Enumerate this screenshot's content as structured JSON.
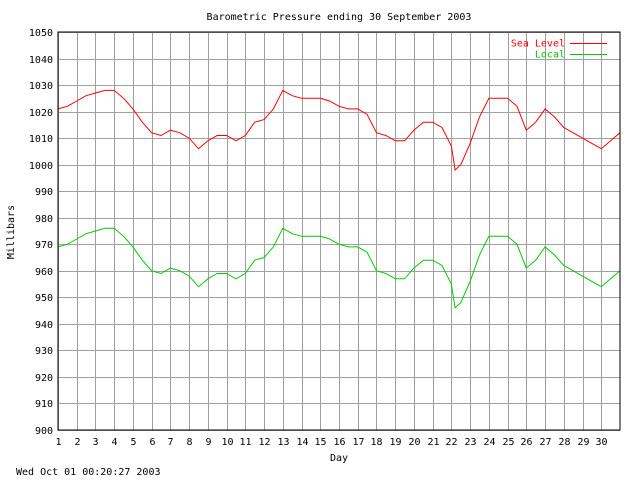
{
  "chart_data": {
    "type": "line",
    "title": "Barometric Pressure ending 30 September 2003",
    "xlabel": "Day",
    "ylabel": "Millibars",
    "footer": "Wed Oct 01 00:20:27 2003",
    "xlim": [
      1,
      31
    ],
    "ylim": [
      900,
      1050
    ],
    "x_ticks": [
      1,
      2,
      3,
      4,
      5,
      6,
      7,
      8,
      9,
      10,
      11,
      12,
      13,
      14,
      15,
      16,
      17,
      18,
      19,
      20,
      21,
      22,
      23,
      24,
      25,
      26,
      27,
      28,
      29,
      30
    ],
    "y_ticks": [
      900,
      910,
      920,
      930,
      940,
      950,
      960,
      970,
      980,
      990,
      1000,
      1010,
      1020,
      1030,
      1040,
      1050
    ],
    "grid": true,
    "legend_position": "top-right",
    "series": [
      {
        "name": "Sea Level",
        "color": "#ff0000",
        "x": [
          1.0,
          1.5,
          2.0,
          2.5,
          3.0,
          3.5,
          4.0,
          4.5,
          5.0,
          5.5,
          6.0,
          6.5,
          7.0,
          7.5,
          8.0,
          8.5,
          9.0,
          9.5,
          10.0,
          10.5,
          11.0,
          11.5,
          12.0,
          12.5,
          13.0,
          13.5,
          14.0,
          14.5,
          15.0,
          15.5,
          16.0,
          16.5,
          17.0,
          17.5,
          18.0,
          18.5,
          19.0,
          19.5,
          20.0,
          20.5,
          21.0,
          21.5,
          22.0,
          22.2,
          22.5,
          23.0,
          23.5,
          24.0,
          24.5,
          25.0,
          25.5,
          26.0,
          26.5,
          27.0,
          27.5,
          28.0,
          28.5,
          29.0,
          29.5,
          30.0,
          30.5,
          31.0
        ],
        "values": [
          1021,
          1022,
          1024,
          1026,
          1027,
          1028,
          1028,
          1025,
          1021,
          1016,
          1012,
          1011,
          1013,
          1012,
          1010,
          1006,
          1009,
          1011,
          1011,
          1009,
          1011,
          1016,
          1017,
          1021,
          1028,
          1026,
          1025,
          1025,
          1025,
          1024,
          1022,
          1021,
          1021,
          1019,
          1012,
          1011,
          1009,
          1009,
          1013,
          1016,
          1016,
          1014,
          1007,
          998,
          1000,
          1008,
          1018,
          1025,
          1025,
          1025,
          1022,
          1013,
          1016,
          1021,
          1018,
          1014,
          1012,
          1010,
          1008,
          1006,
          1009,
          1012
        ]
      },
      {
        "name": "Local",
        "color": "#00cc00",
        "x": [
          1.0,
          1.5,
          2.0,
          2.5,
          3.0,
          3.5,
          4.0,
          4.5,
          5.0,
          5.5,
          6.0,
          6.5,
          7.0,
          7.5,
          8.0,
          8.5,
          9.0,
          9.5,
          10.0,
          10.5,
          11.0,
          11.5,
          12.0,
          12.5,
          13.0,
          13.5,
          14.0,
          14.5,
          15.0,
          15.5,
          16.0,
          16.5,
          17.0,
          17.5,
          18.0,
          18.5,
          19.0,
          19.5,
          20.0,
          20.5,
          21.0,
          21.5,
          22.0,
          22.2,
          22.5,
          23.0,
          23.5,
          24.0,
          24.5,
          25.0,
          25.5,
          26.0,
          26.5,
          27.0,
          27.5,
          28.0,
          28.5,
          29.0,
          29.5,
          30.0,
          30.5,
          31.0
        ],
        "values": [
          969,
          970,
          972,
          974,
          975,
          976,
          976,
          973,
          969,
          964,
          960,
          959,
          961,
          960,
          958,
          954,
          957,
          959,
          959,
          957,
          959,
          964,
          965,
          969,
          976,
          974,
          973,
          973,
          973,
          972,
          970,
          969,
          969,
          967,
          960,
          959,
          957,
          957,
          961,
          964,
          964,
          962,
          955,
          946,
          948,
          956,
          966,
          973,
          973,
          973,
          970,
          961,
          964,
          969,
          966,
          962,
          960,
          958,
          956,
          954,
          957,
          960
        ]
      }
    ]
  }
}
